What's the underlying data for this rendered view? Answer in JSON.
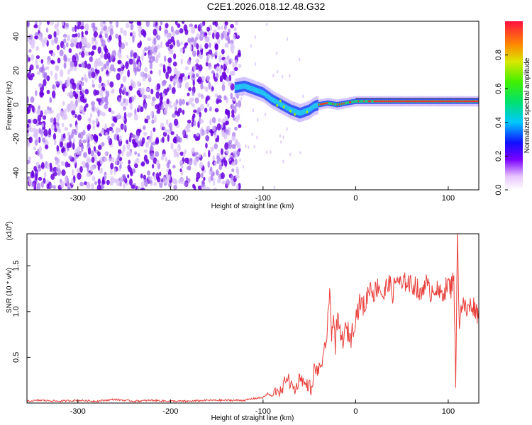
{
  "title": "C2E1.2026.018.12.48.G32",
  "colors": {
    "snr_line": "#e8403c",
    "scatter_purple": "#6a00e0",
    "band_core": "#ff2a2a",
    "band_mid": "#22d66b",
    "band_low": "#2a50ff"
  },
  "chart_data": [
    {
      "type": "heatmap",
      "name": "spectrogram",
      "xlabel": "Height of straight line (km)",
      "ylabel": "Frequency (Hz)",
      "xlim": [
        -355,
        133
      ],
      "ylim": [
        -50,
        49
      ],
      "x_ticks": [
        -300,
        -200,
        -100,
        0,
        100
      ],
      "x_tick_labels": [
        "-300",
        "-200",
        "-100",
        "0",
        "100"
      ],
      "y_ticks": [
        -40,
        -20,
        0,
        20,
        40
      ],
      "y_tick_labels": [
        "-40",
        "-20",
        "0",
        "20",
        "40"
      ],
      "noise_region_x": [
        -355,
        -125
      ],
      "ridge": {
        "x": [
          -130,
          -120,
          -110,
          -100,
          -90,
          -80,
          -70,
          -60,
          -50,
          -45,
          -40,
          -30,
          -20,
          -10,
          0,
          10,
          30,
          60,
          90,
          110,
          133
        ],
        "freq": [
          10,
          11,
          9,
          7,
          3,
          0,
          -3,
          -5,
          -3,
          -1,
          0,
          1,
          0,
          1,
          2,
          2,
          2,
          2,
          2,
          2,
          2
        ]
      },
      "colorbar": {
        "label": "Normalized spectral amplitude",
        "range": [
          0,
          1
        ],
        "ticks": [
          0.0,
          0.2,
          0.4,
          0.6,
          0.8
        ],
        "tick_labels": [
          "0.0",
          "0.2",
          "0.4",
          "0.6",
          "0.8"
        ]
      }
    },
    {
      "type": "line",
      "name": "snr",
      "xlabel": "Height of straight line (km)",
      "ylabel": "SNR (10 * v/v)",
      "y_scale_label": "(x10",
      "y_scale_exp": "4",
      "y_scale_close": ")",
      "xlim": [
        -355,
        133
      ],
      "ylim": [
        0,
        1.85
      ],
      "x_ticks": [
        -300,
        -200,
        -100,
        0,
        100
      ],
      "x_tick_labels": [
        "-300",
        "-200",
        "-100",
        "0",
        "100"
      ],
      "y_ticks": [
        0.5,
        1.0,
        1.5
      ],
      "y_tick_labels": [
        "0.5",
        "1.0",
        "1.5"
      ],
      "series": [
        {
          "name": "SNR",
          "x": [
            -355,
            -340,
            -320,
            -300,
            -280,
            -260,
            -240,
            -220,
            -200,
            -180,
            -160,
            -140,
            -120,
            -110,
            -100,
            -95,
            -90,
            -85,
            -80,
            -75,
            -70,
            -65,
            -60,
            -55,
            -50,
            -47,
            -45,
            -40,
            -35,
            -32,
            -30,
            -28,
            -26,
            -24,
            -22,
            -20,
            -15,
            -10,
            -5,
            0,
            5,
            10,
            15,
            20,
            25,
            30,
            35,
            40,
            45,
            50,
            55,
            60,
            65,
            70,
            75,
            80,
            85,
            90,
            95,
            100,
            103,
            106,
            108,
            110,
            112,
            115,
            120,
            125,
            130,
            133
          ],
          "values": [
            0.02,
            0.03,
            0.02,
            0.03,
            0.02,
            0.04,
            0.02,
            0.03,
            0.02,
            0.02,
            0.03,
            0.03,
            0.03,
            0.05,
            0.06,
            0.1,
            0.07,
            0.16,
            0.1,
            0.3,
            0.2,
            0.14,
            0.3,
            0.2,
            0.2,
            0.12,
            0.38,
            0.35,
            0.48,
            0.6,
            1.0,
            1.15,
            0.7,
            1.05,
            0.6,
            0.9,
            0.68,
            0.8,
            0.72,
            0.95,
            1.1,
            1.05,
            1.28,
            1.2,
            1.3,
            1.15,
            1.33,
            1.2,
            1.38,
            1.25,
            1.35,
            1.28,
            1.3,
            1.15,
            1.35,
            1.2,
            1.28,
            1.18,
            1.22,
            1.3,
            1.25,
            1.45,
            0.2,
            1.82,
            0.9,
            1.1,
            1.0,
            1.08,
            1.03,
            0.92
          ]
        }
      ]
    }
  ]
}
